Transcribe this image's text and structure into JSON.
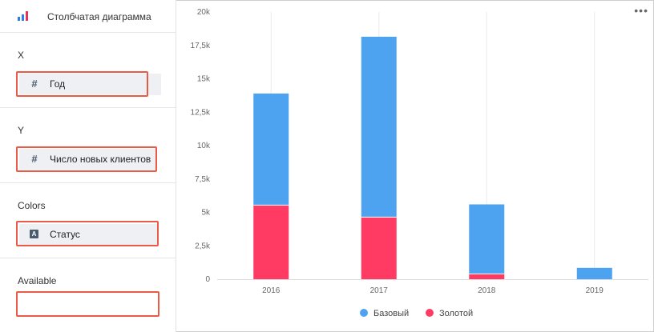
{
  "toolbar": {
    "chart_type_label": "Столбчатая диаграмма",
    "chart_type_icon": "bar-chart-icon",
    "icon_colors": [
      "#2e7fe3",
      "#2e7fe3",
      "#e63357"
    ]
  },
  "sections": {
    "x": {
      "title": "X",
      "field": {
        "label": "Год",
        "icon": "hash-icon",
        "icon_glyph": "#"
      }
    },
    "y": {
      "title": "Y",
      "field": {
        "label": "Число новых клиентов",
        "icon": "hash-icon",
        "icon_glyph": "#"
      }
    },
    "colors": {
      "title": "Colors",
      "field": {
        "label": "Статус",
        "icon": "text-type-icon",
        "icon_glyph": "A"
      }
    },
    "available": {
      "title": "Available"
    }
  },
  "highlight_color": "#ea5a47",
  "chart_menu_icon": "more-dots-icon",
  "chart_data": {
    "type": "bar",
    "stacked": true,
    "categories": [
      "2016",
      "2017",
      "2018",
      "2019"
    ],
    "series": [
      {
        "name": "Базовый",
        "color": "#4da3f0",
        "values": [
          8350,
          13500,
          5200,
          850
        ]
      },
      {
        "name": "Золотой",
        "color": "#ff3b63",
        "values": [
          5550,
          4650,
          400,
          0
        ]
      }
    ],
    "ylim": [
      0,
      20000
    ],
    "yticks": [
      "0",
      "2,5k",
      "5k",
      "7,5k",
      "10k",
      "12,5k",
      "15k",
      "17,5k",
      "20k"
    ],
    "grid": "vertical",
    "legend_position": "bottom-center"
  }
}
